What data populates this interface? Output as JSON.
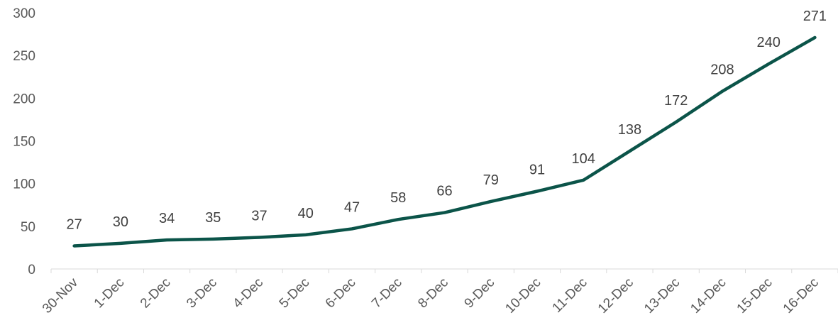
{
  "chart_data": {
    "type": "line",
    "categories": [
      "30-Nov",
      "1-Dec",
      "2-Dec",
      "3-Dec",
      "4-Dec",
      "5-Dec",
      "6-Dec",
      "7-Dec",
      "8-Dec",
      "9-Dec",
      "10-Dec",
      "11-Dec",
      "12-Dec",
      "13-Dec",
      "14-Dec",
      "15-Dec",
      "16-Dec"
    ],
    "series": [
      {
        "values": [
          27,
          30,
          34,
          35,
          37,
          40,
          47,
          58,
          66,
          79,
          91,
          104,
          138,
          172,
          208,
          240,
          271
        ]
      }
    ],
    "ylim": [
      0,
      300
    ],
    "yticks": [
      0,
      50,
      100,
      150,
      200,
      250,
      300
    ],
    "grid": false,
    "legend": "none",
    "line_color": "#0b5449",
    "data_labels": true
  }
}
